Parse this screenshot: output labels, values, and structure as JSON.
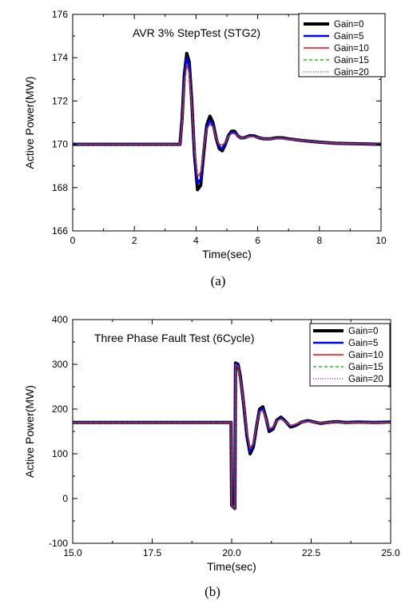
{
  "chart_data": [
    {
      "type": "line",
      "title": "AVR 3% StepTest (STG2)",
      "caption": "(a)",
      "xlabel": "Time(sec)",
      "ylabel": "Active Power(MW)",
      "xlim": [
        0,
        10
      ],
      "ylim": [
        166,
        176
      ],
      "xticks": [
        0,
        2,
        4,
        6,
        8,
        10
      ],
      "yticks": [
        166,
        168,
        170,
        172,
        174,
        176
      ],
      "grid": false,
      "legend_position": "top-right",
      "series": [
        {
          "name": "Gain=0",
          "color": "#000000",
          "style": "solid",
          "x": [
            0,
            3.48,
            3.55,
            3.62,
            3.7,
            3.78,
            3.86,
            3.95,
            4.05,
            4.15,
            4.25,
            4.35,
            4.45,
            4.55,
            4.65,
            4.75,
            4.85,
            4.95,
            5.05,
            5.15,
            5.25,
            5.35,
            5.45,
            5.55,
            5.65,
            5.75,
            5.9,
            6.05,
            6.2,
            6.4,
            6.6,
            6.8,
            7.0,
            7.3,
            7.6,
            8.0,
            8.5,
            9.0,
            9.5,
            10.0
          ],
          "y": [
            170.0,
            170.0,
            171.2,
            173.2,
            174.2,
            173.8,
            172.0,
            169.5,
            167.9,
            168.1,
            169.6,
            170.9,
            171.3,
            171.0,
            170.3,
            169.8,
            169.7,
            170.0,
            170.4,
            170.6,
            170.6,
            170.4,
            170.3,
            170.3,
            170.35,
            170.4,
            170.38,
            170.3,
            170.25,
            170.25,
            170.3,
            170.3,
            170.25,
            170.2,
            170.15,
            170.1,
            170.05,
            170.03,
            170.02,
            170.0
          ]
        },
        {
          "name": "Gain=5",
          "color": "#0000ff",
          "style": "solid",
          "x": [
            0,
            3.48,
            3.55,
            3.62,
            3.7,
            3.78,
            3.86,
            3.95,
            4.05,
            4.15,
            4.25,
            4.35,
            4.45,
            4.55,
            4.65,
            4.75,
            4.85,
            4.95,
            5.05,
            5.15,
            5.25,
            5.35,
            5.45,
            5.55,
            5.65,
            5.75,
            5.9,
            6.05,
            6.2,
            6.4,
            6.6,
            6.8,
            7.0,
            7.3,
            7.6,
            8.0,
            8.5,
            9.0,
            9.5,
            10.0
          ],
          "y": [
            170.0,
            170.0,
            171.1,
            173.0,
            174.0,
            173.6,
            171.9,
            169.6,
            168.2,
            168.4,
            169.7,
            170.8,
            171.1,
            170.9,
            170.3,
            169.9,
            169.8,
            170.05,
            170.4,
            170.55,
            170.55,
            170.4,
            170.3,
            170.3,
            170.35,
            170.38,
            170.36,
            170.3,
            170.25,
            170.25,
            170.28,
            170.28,
            170.24,
            170.2,
            170.15,
            170.1,
            170.05,
            170.03,
            170.02,
            170.0
          ]
        },
        {
          "name": "Gain=10",
          "color": "#ff0000",
          "style": "solid",
          "x": [
            0,
            3.48,
            3.55,
            3.62,
            3.7,
            3.78,
            3.86,
            3.95,
            4.05,
            4.15,
            4.25,
            4.35,
            4.45,
            4.55,
            4.65,
            4.75,
            4.85,
            4.95,
            5.05,
            5.15,
            5.25,
            5.35,
            5.45,
            5.55,
            5.65,
            5.75,
            5.9,
            6.05,
            6.2,
            6.4,
            6.6,
            6.8,
            7.0,
            7.3,
            7.6,
            8.0,
            8.5,
            9.0,
            9.5,
            10.0
          ],
          "y": [
            170.0,
            170.0,
            171.0,
            172.8,
            173.7,
            173.3,
            171.8,
            169.8,
            168.5,
            168.7,
            169.8,
            170.7,
            170.95,
            170.8,
            170.3,
            170.0,
            169.95,
            170.1,
            170.35,
            170.5,
            170.5,
            170.38,
            170.3,
            170.3,
            170.33,
            170.36,
            170.34,
            170.3,
            170.25,
            170.25,
            170.27,
            170.27,
            170.23,
            170.2,
            170.15,
            170.1,
            170.05,
            170.03,
            170.02,
            170.0
          ]
        },
        {
          "name": "Gain=15",
          "color": "#00b000",
          "style": "dashed",
          "x": [
            0,
            3.48,
            3.55,
            3.62,
            3.7,
            3.78,
            3.86,
            3.95,
            4.05,
            4.15,
            4.25,
            4.35,
            4.45,
            4.55,
            4.65,
            4.75,
            4.85,
            4.95,
            5.05,
            5.15,
            5.25,
            5.35,
            5.45,
            5.55,
            5.65,
            5.75,
            5.9,
            6.05,
            6.2,
            6.4,
            6.6,
            6.8,
            7.0,
            7.3,
            7.6,
            8.0,
            8.5,
            9.0,
            9.5,
            10.0
          ],
          "y": [
            170.0,
            170.0,
            171.0,
            172.8,
            173.7,
            173.3,
            171.8,
            169.8,
            168.5,
            168.7,
            169.8,
            170.7,
            170.95,
            170.8,
            170.3,
            170.0,
            169.95,
            170.1,
            170.35,
            170.5,
            170.5,
            170.38,
            170.3,
            170.3,
            170.33,
            170.36,
            170.34,
            170.3,
            170.25,
            170.25,
            170.27,
            170.27,
            170.23,
            170.2,
            170.15,
            170.1,
            170.05,
            170.03,
            170.02,
            170.0
          ]
        },
        {
          "name": "Gain=20",
          "color": "#cc00cc",
          "style": "dotted",
          "x": [
            0,
            3.48,
            3.55,
            3.62,
            3.7,
            3.78,
            3.86,
            3.95,
            4.05,
            4.15,
            4.25,
            4.35,
            4.45,
            4.55,
            4.65,
            4.75,
            4.85,
            4.95,
            5.05,
            5.15,
            5.25,
            5.35,
            5.45,
            5.55,
            5.65,
            5.75,
            5.9,
            6.05,
            6.2,
            6.4,
            6.6,
            6.8,
            7.0,
            7.3,
            7.6,
            8.0,
            8.5,
            9.0,
            9.5,
            10.0
          ],
          "y": [
            170.0,
            170.0,
            171.0,
            172.8,
            173.7,
            173.3,
            171.8,
            169.8,
            168.5,
            168.7,
            169.8,
            170.7,
            170.95,
            170.8,
            170.3,
            170.0,
            169.95,
            170.1,
            170.35,
            170.5,
            170.5,
            170.38,
            170.3,
            170.3,
            170.33,
            170.36,
            170.34,
            170.3,
            170.25,
            170.25,
            170.27,
            170.27,
            170.23,
            170.2,
            170.15,
            170.1,
            170.05,
            170.03,
            170.02,
            170.0
          ]
        }
      ]
    },
    {
      "type": "line",
      "title": "Three Phase Fault Test (6Cycle)",
      "caption": "(b)",
      "xlabel": "Time(sec)",
      "ylabel": "Active Power(MW)",
      "xlim": [
        15,
        25
      ],
      "ylim": [
        -100,
        400
      ],
      "xticks": [
        15.0,
        17.5,
        20.0,
        22.5,
        25.0
      ],
      "yticks": [
        -100,
        0,
        100,
        200,
        300,
        400
      ],
      "grid": false,
      "legend_position": "top-right",
      "series": [
        {
          "name": "Gain=0",
          "color": "#000000",
          "style": "solid",
          "x": [
            15,
            19.98,
            20.0,
            20.1,
            20.12,
            20.2,
            20.28,
            20.38,
            20.48,
            20.58,
            20.68,
            20.78,
            20.88,
            20.98,
            21.08,
            21.18,
            21.3,
            21.42,
            21.55,
            21.7,
            21.85,
            22.0,
            22.2,
            22.4,
            22.6,
            22.8,
            23.0,
            23.3,
            23.6,
            24.0,
            24.5,
            25.0
          ],
          "y": [
            170,
            170,
            -15,
            -22,
            303,
            300,
            270,
            210,
            140,
            100,
            115,
            160,
            200,
            205,
            180,
            150,
            155,
            175,
            182,
            172,
            160,
            163,
            171,
            174,
            171,
            168,
            170,
            172,
            170,
            171,
            170,
            171
          ]
        },
        {
          "name": "Gain=5",
          "color": "#0000ff",
          "style": "solid",
          "x": [
            15,
            19.98,
            20.0,
            20.1,
            20.12,
            20.2,
            20.28,
            20.38,
            20.48,
            20.58,
            20.68,
            20.78,
            20.88,
            20.98,
            21.08,
            21.18,
            21.3,
            21.42,
            21.55,
            21.7,
            21.85,
            22.0,
            22.2,
            22.4,
            22.6,
            22.8,
            23.0,
            23.3,
            23.6,
            24.0,
            24.5,
            25.0
          ],
          "y": [
            170,
            170,
            -15,
            -22,
            302,
            298,
            268,
            212,
            145,
            106,
            120,
            162,
            197,
            201,
            178,
            153,
            158,
            174,
            180,
            171,
            162,
            165,
            171,
            173,
            171,
            168,
            170,
            171,
            170,
            171,
            170,
            171
          ]
        },
        {
          "name": "Gain=10",
          "color": "#ff0000",
          "style": "solid",
          "x": [
            15,
            19.98,
            20.0,
            20.1,
            20.12,
            20.2,
            20.28,
            20.38,
            20.48,
            20.58,
            20.68,
            20.78,
            20.88,
            20.98,
            21.08,
            21.18,
            21.3,
            21.42,
            21.55,
            21.7,
            21.85,
            22.0,
            22.2,
            22.4,
            22.6,
            22.8,
            23.0,
            23.3,
            23.6,
            24.0,
            24.5,
            25.0
          ],
          "y": [
            170,
            170,
            -15,
            -22,
            300,
            295,
            265,
            215,
            150,
            112,
            124,
            163,
            194,
            197,
            177,
            156,
            160,
            173,
            178,
            171,
            163,
            166,
            171,
            172,
            171,
            169,
            170,
            171,
            170,
            170,
            170,
            170
          ]
        },
        {
          "name": "Gain=15",
          "color": "#00b000",
          "style": "dashed",
          "x": [
            15,
            19.98,
            20.0,
            20.1,
            20.12,
            20.2,
            20.28,
            20.38,
            20.48,
            20.58,
            20.68,
            20.78,
            20.88,
            20.98,
            21.08,
            21.18,
            21.3,
            21.42,
            21.55,
            21.7,
            21.85,
            22.0,
            22.2,
            22.4,
            22.6,
            22.8,
            23.0,
            23.3,
            23.6,
            24.0,
            24.5,
            25.0
          ],
          "y": [
            170,
            170,
            -15,
            -22,
            300,
            295,
            265,
            215,
            150,
            112,
            124,
            163,
            194,
            197,
            177,
            156,
            160,
            173,
            178,
            171,
            163,
            166,
            171,
            172,
            171,
            169,
            170,
            171,
            170,
            170,
            170,
            170
          ]
        },
        {
          "name": "Gain=20",
          "color": "#cc00cc",
          "style": "dotted",
          "x": [
            15,
            19.98,
            20.0,
            20.1,
            20.12,
            20.2,
            20.28,
            20.38,
            20.48,
            20.58,
            20.68,
            20.78,
            20.88,
            20.98,
            21.08,
            21.18,
            21.3,
            21.42,
            21.55,
            21.7,
            21.85,
            22.0,
            22.2,
            22.4,
            22.6,
            22.8,
            23.0,
            23.3,
            23.6,
            24.0,
            24.5,
            25.0
          ],
          "y": [
            170,
            170,
            -15,
            -22,
            300,
            295,
            265,
            215,
            150,
            112,
            124,
            163,
            194,
            197,
            177,
            156,
            160,
            173,
            178,
            171,
            163,
            166,
            171,
            172,
            171,
            169,
            170,
            171,
            170,
            170,
            170,
            170
          ]
        }
      ]
    }
  ]
}
